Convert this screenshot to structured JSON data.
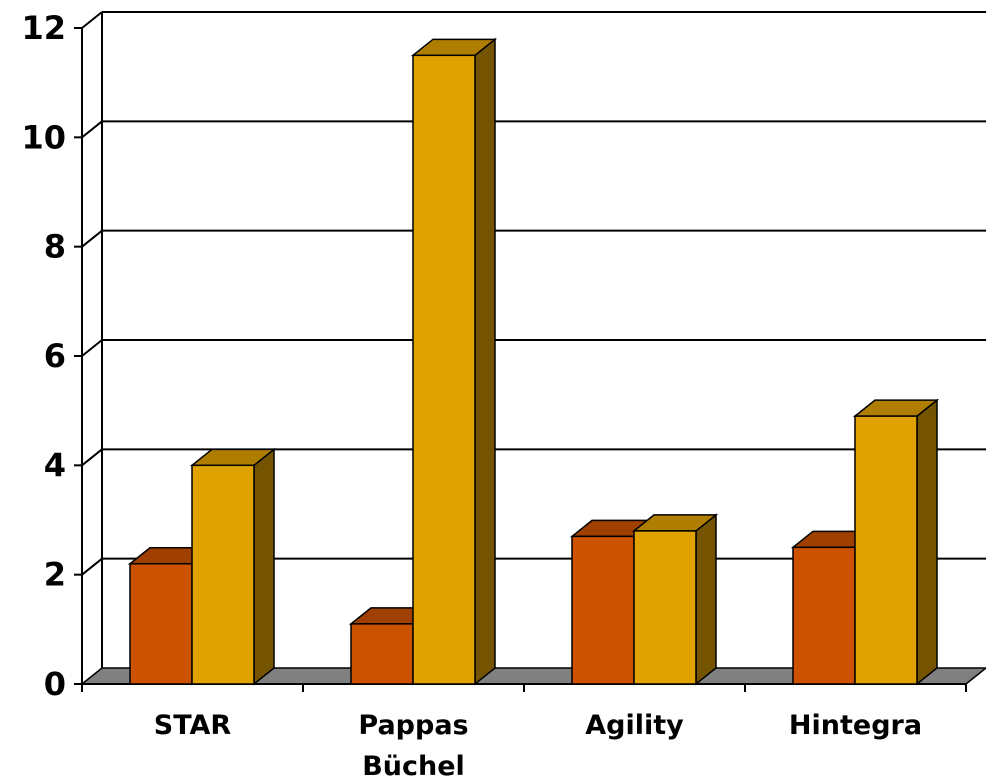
{
  "chart_data": {
    "type": "bar",
    "categories": [
      "STAR",
      "Pappas\nBüchel",
      "Agility",
      "Hintegra"
    ],
    "series": [
      {
        "values": [
          2.2,
          1.1,
          2.7,
          2.5
        ],
        "color": "#CC5200"
      },
      {
        "values": [
          4.0,
          11.5,
          2.8,
          4.9
        ],
        "color": "#E0A200"
      }
    ],
    "yticks": [
      "0",
      "2",
      "4",
      "6",
      "8",
      "10",
      "12"
    ],
    "ylim": [
      0,
      12
    ],
    "grid": true,
    "style": "3d-clustered-column",
    "floor_color": "#808080"
  }
}
